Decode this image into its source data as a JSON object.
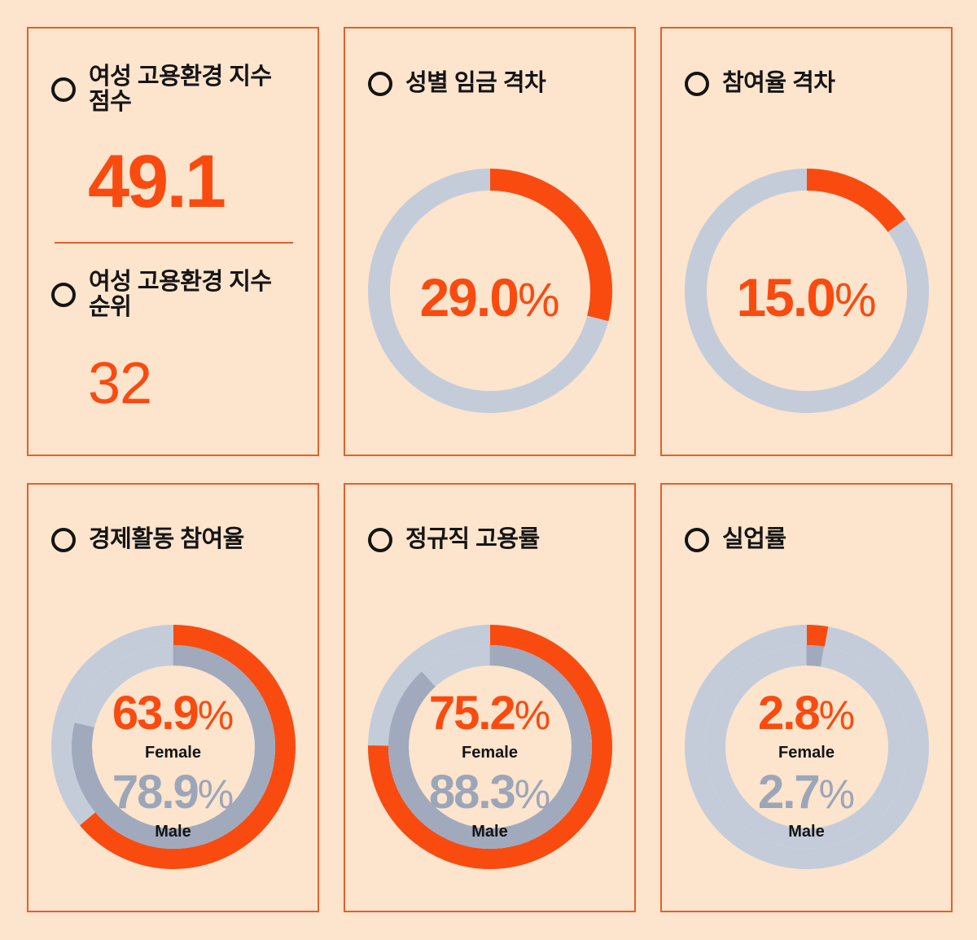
{
  "strings": {
    "percent": "%",
    "female": "Female",
    "male": "Male"
  },
  "theme": {
    "background": "#FCE4CD",
    "card_border": "#E2612B",
    "accent_orange": "#F94B10",
    "track_gray": "#C4CCDA",
    "male_gray": "#A0AABC",
    "text_black": "#151515"
  },
  "chart_data": {
    "type": "donut-dashboard",
    "panels": [
      {
        "id": "index-score",
        "type": "kpi",
        "kpis": [
          {
            "title_lines": [
              "여성 고용환경 지수",
              "점수"
            ],
            "value": "49.1"
          },
          {
            "title_lines": [
              "여성 고용환경 지수",
              "순위"
            ],
            "value": "32"
          }
        ]
      },
      {
        "id": "gender-wage-gap",
        "type": "donut",
        "title": "성별 임금 격차",
        "value_pct": 29.0,
        "value_display": "29.0"
      },
      {
        "id": "participation-gap",
        "type": "donut",
        "title": "참여율 격차",
        "value_pct": 15.0,
        "value_display": "15.0"
      },
      {
        "id": "economic-activity-participation",
        "type": "double-donut",
        "title": "경제활동 참여율",
        "female_pct": 63.9,
        "male_pct": 78.9,
        "female_display": "63.9",
        "male_display": "78.9"
      },
      {
        "id": "regular-employment-rate",
        "type": "double-donut",
        "title": "정규직 고용률",
        "female_pct": 75.2,
        "male_pct": 88.3,
        "female_display": "75.2",
        "male_display": "88.3"
      },
      {
        "id": "unemployment-rate",
        "type": "double-donut",
        "title": "실업률",
        "female_pct": 2.8,
        "male_pct": 2.7,
        "female_display": "2.8",
        "male_display": "2.7"
      }
    ]
  }
}
